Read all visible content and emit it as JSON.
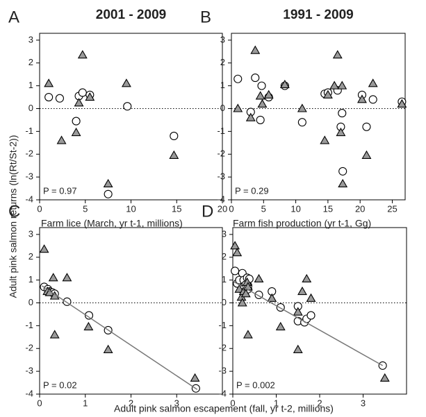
{
  "figure": {
    "ylabel": "Adult pink salmon returns (ln(Rt/St-2))",
    "xlabel": "Adult pink salmon escapement (fall, yr t-2, millions)"
  },
  "chart_data": [
    {
      "type": "scatter",
      "panel": "A",
      "title": "2001 - 2009",
      "xlabel": "Farm lice (March, yr t-1, millions)",
      "annotation": "P = 0.97",
      "xlim": [
        0,
        20
      ],
      "xticks": [
        0,
        5,
        10,
        15,
        20
      ],
      "ylim": [
        -4,
        3.3
      ],
      "yticks": [
        -4,
        -3,
        -2,
        -1,
        0,
        1,
        2,
        3
      ],
      "hline": 0,
      "series": [
        {
          "marker": "circle",
          "color": "#ffffff",
          "x": [
            1,
            2.2,
            4,
            4.3,
            4.7,
            5.5,
            7.5,
            9.6,
            14.7
          ],
          "values": [
            0.5,
            0.45,
            -0.55,
            0.55,
            0.7,
            0.6,
            -3.75,
            0.1,
            -1.2
          ]
        },
        {
          "marker": "triangle",
          "color": "#9a9a9a",
          "x": [
            1,
            2.4,
            4,
            4.3,
            4.7,
            5.5,
            7.5,
            9.5,
            14.7
          ],
          "values": [
            1.1,
            -1.4,
            -1.05,
            0.25,
            2.35,
            0.5,
            -3.3,
            1.1,
            -2.05
          ]
        }
      ]
    },
    {
      "type": "scatter",
      "panel": "B",
      "title": "1991 - 2009",
      "xlabel": "Farm fish production (yr t-1, Gg)",
      "annotation": "P = 0.29",
      "xlim": [
        0,
        27
      ],
      "xticks": [
        0,
        5,
        10,
        15,
        20,
        25
      ],
      "ylim": [
        -4,
        3.3
      ],
      "yticks": [
        -4,
        -3,
        -2,
        -1,
        0,
        1,
        2,
        3
      ],
      "hline": 0,
      "series": [
        {
          "marker": "circle",
          "color": "#ffffff",
          "x": [
            1,
            3,
            3.7,
            4.5,
            4.7,
            5.8,
            8.3,
            11,
            14.5,
            15,
            16.5,
            17,
            17.2,
            17.3,
            20.3,
            21,
            22,
            26.5
          ],
          "values": [
            1.3,
            -0.15,
            1.35,
            -0.5,
            1.0,
            0.5,
            1.0,
            -0.6,
            0.65,
            0.7,
            0.8,
            -0.8,
            -0.2,
            -2.75,
            0.6,
            -0.8,
            0.4,
            0.3
          ]
        },
        {
          "marker": "triangle",
          "color": "#9a9a9a",
          "x": [
            1,
            3,
            3.7,
            4.5,
            4.8,
            5.8,
            8.3,
            11,
            14.5,
            15,
            16,
            16.5,
            17,
            17.2,
            17.3,
            20.3,
            21,
            22,
            26.5
          ],
          "values": [
            0,
            -0.4,
            2.55,
            0.55,
            0.2,
            0.6,
            1.05,
            0,
            -1.4,
            0.6,
            1.0,
            2.35,
            -1.05,
            1.0,
            -3.3,
            0.4,
            -2.05,
            1.1,
            0.2
          ]
        }
      ]
    },
    {
      "type": "scatter",
      "panel": "C",
      "annotation": "P = 0.02",
      "xlim": [
        0,
        4
      ],
      "xticks": [
        0,
        1,
        2,
        3
      ],
      "ylim": [
        -4,
        3.3
      ],
      "yticks": [
        -4,
        -3,
        -2,
        -1,
        0,
        1,
        2,
        3
      ],
      "hline": 0,
      "series": [
        {
          "marker": "circle",
          "color": "#ffffff",
          "x": [
            0.1,
            0.18,
            0.22,
            0.28,
            0.33,
            0.6,
            1.08,
            1.5,
            3.42
          ],
          "values": [
            0.7,
            0.6,
            0.5,
            0.45,
            0.4,
            0.05,
            -0.55,
            -1.2,
            -3.75
          ]
        },
        {
          "marker": "triangle",
          "color": "#9a9a9a",
          "x": [
            0.1,
            0.17,
            0.22,
            0.3,
            0.33,
            0.33,
            0.6,
            1.07,
            1.5,
            3.4
          ],
          "values": [
            2.35,
            0.5,
            0.45,
            1.1,
            -1.4,
            0.3,
            1.1,
            -1.05,
            -2.05,
            -3.3
          ]
        },
        {
          "marker": "line",
          "color": "#777777",
          "x": [
            0.05,
            3.45
          ],
          "values": [
            0.75,
            -3.8
          ]
        }
      ]
    },
    {
      "type": "scatter",
      "panel": "D",
      "annotation": "P = 0.002",
      "xlim": [
        0,
        4
      ],
      "xticks": [
        0,
        1,
        2,
        3
      ],
      "ylim": [
        -4,
        3.3
      ],
      "yticks": [
        -4,
        -3,
        -2,
        -1,
        0,
        1,
        2,
        3
      ],
      "hline": 0,
      "series": [
        {
          "marker": "circle",
          "color": "#ffffff",
          "x": [
            0.05,
            0.1,
            0.15,
            0.2,
            0.22,
            0.25,
            0.28,
            0.3,
            0.33,
            0.35,
            0.35,
            0.38,
            0.6,
            0.9,
            1.1,
            1.5,
            1.5,
            1.65,
            1.7,
            1.8,
            3.45
          ],
          "values": [
            1.4,
            0.85,
            1.0,
            0.6,
            1.3,
            1.0,
            0.5,
            0.8,
            1.1,
            0.6,
            0.75,
            1.05,
            0.35,
            0.5,
            -0.2,
            -0.15,
            -0.8,
            -0.85,
            -0.7,
            -0.55,
            -2.75
          ]
        },
        {
          "marker": "triangle",
          "color": "#9a9a9a",
          "x": [
            0.05,
            0.1,
            0.15,
            0.2,
            0.22,
            0.25,
            0.3,
            0.33,
            0.35,
            0.35,
            0.6,
            0.9,
            1.1,
            1.5,
            1.5,
            1.6,
            1.7,
            1.8,
            3.5
          ],
          "values": [
            2.5,
            2.2,
            0.6,
            0.25,
            0,
            0.5,
            0.4,
            0.9,
            -1.4,
            0.7,
            1.05,
            0.2,
            -1.05,
            -2.05,
            -0.4,
            0.5,
            1.05,
            0.2,
            -3.3
          ]
        },
        {
          "marker": "line",
          "color": "#777777",
          "x": [
            0,
            3.45
          ],
          "values": [
            0.95,
            -2.75
          ]
        }
      ]
    }
  ]
}
